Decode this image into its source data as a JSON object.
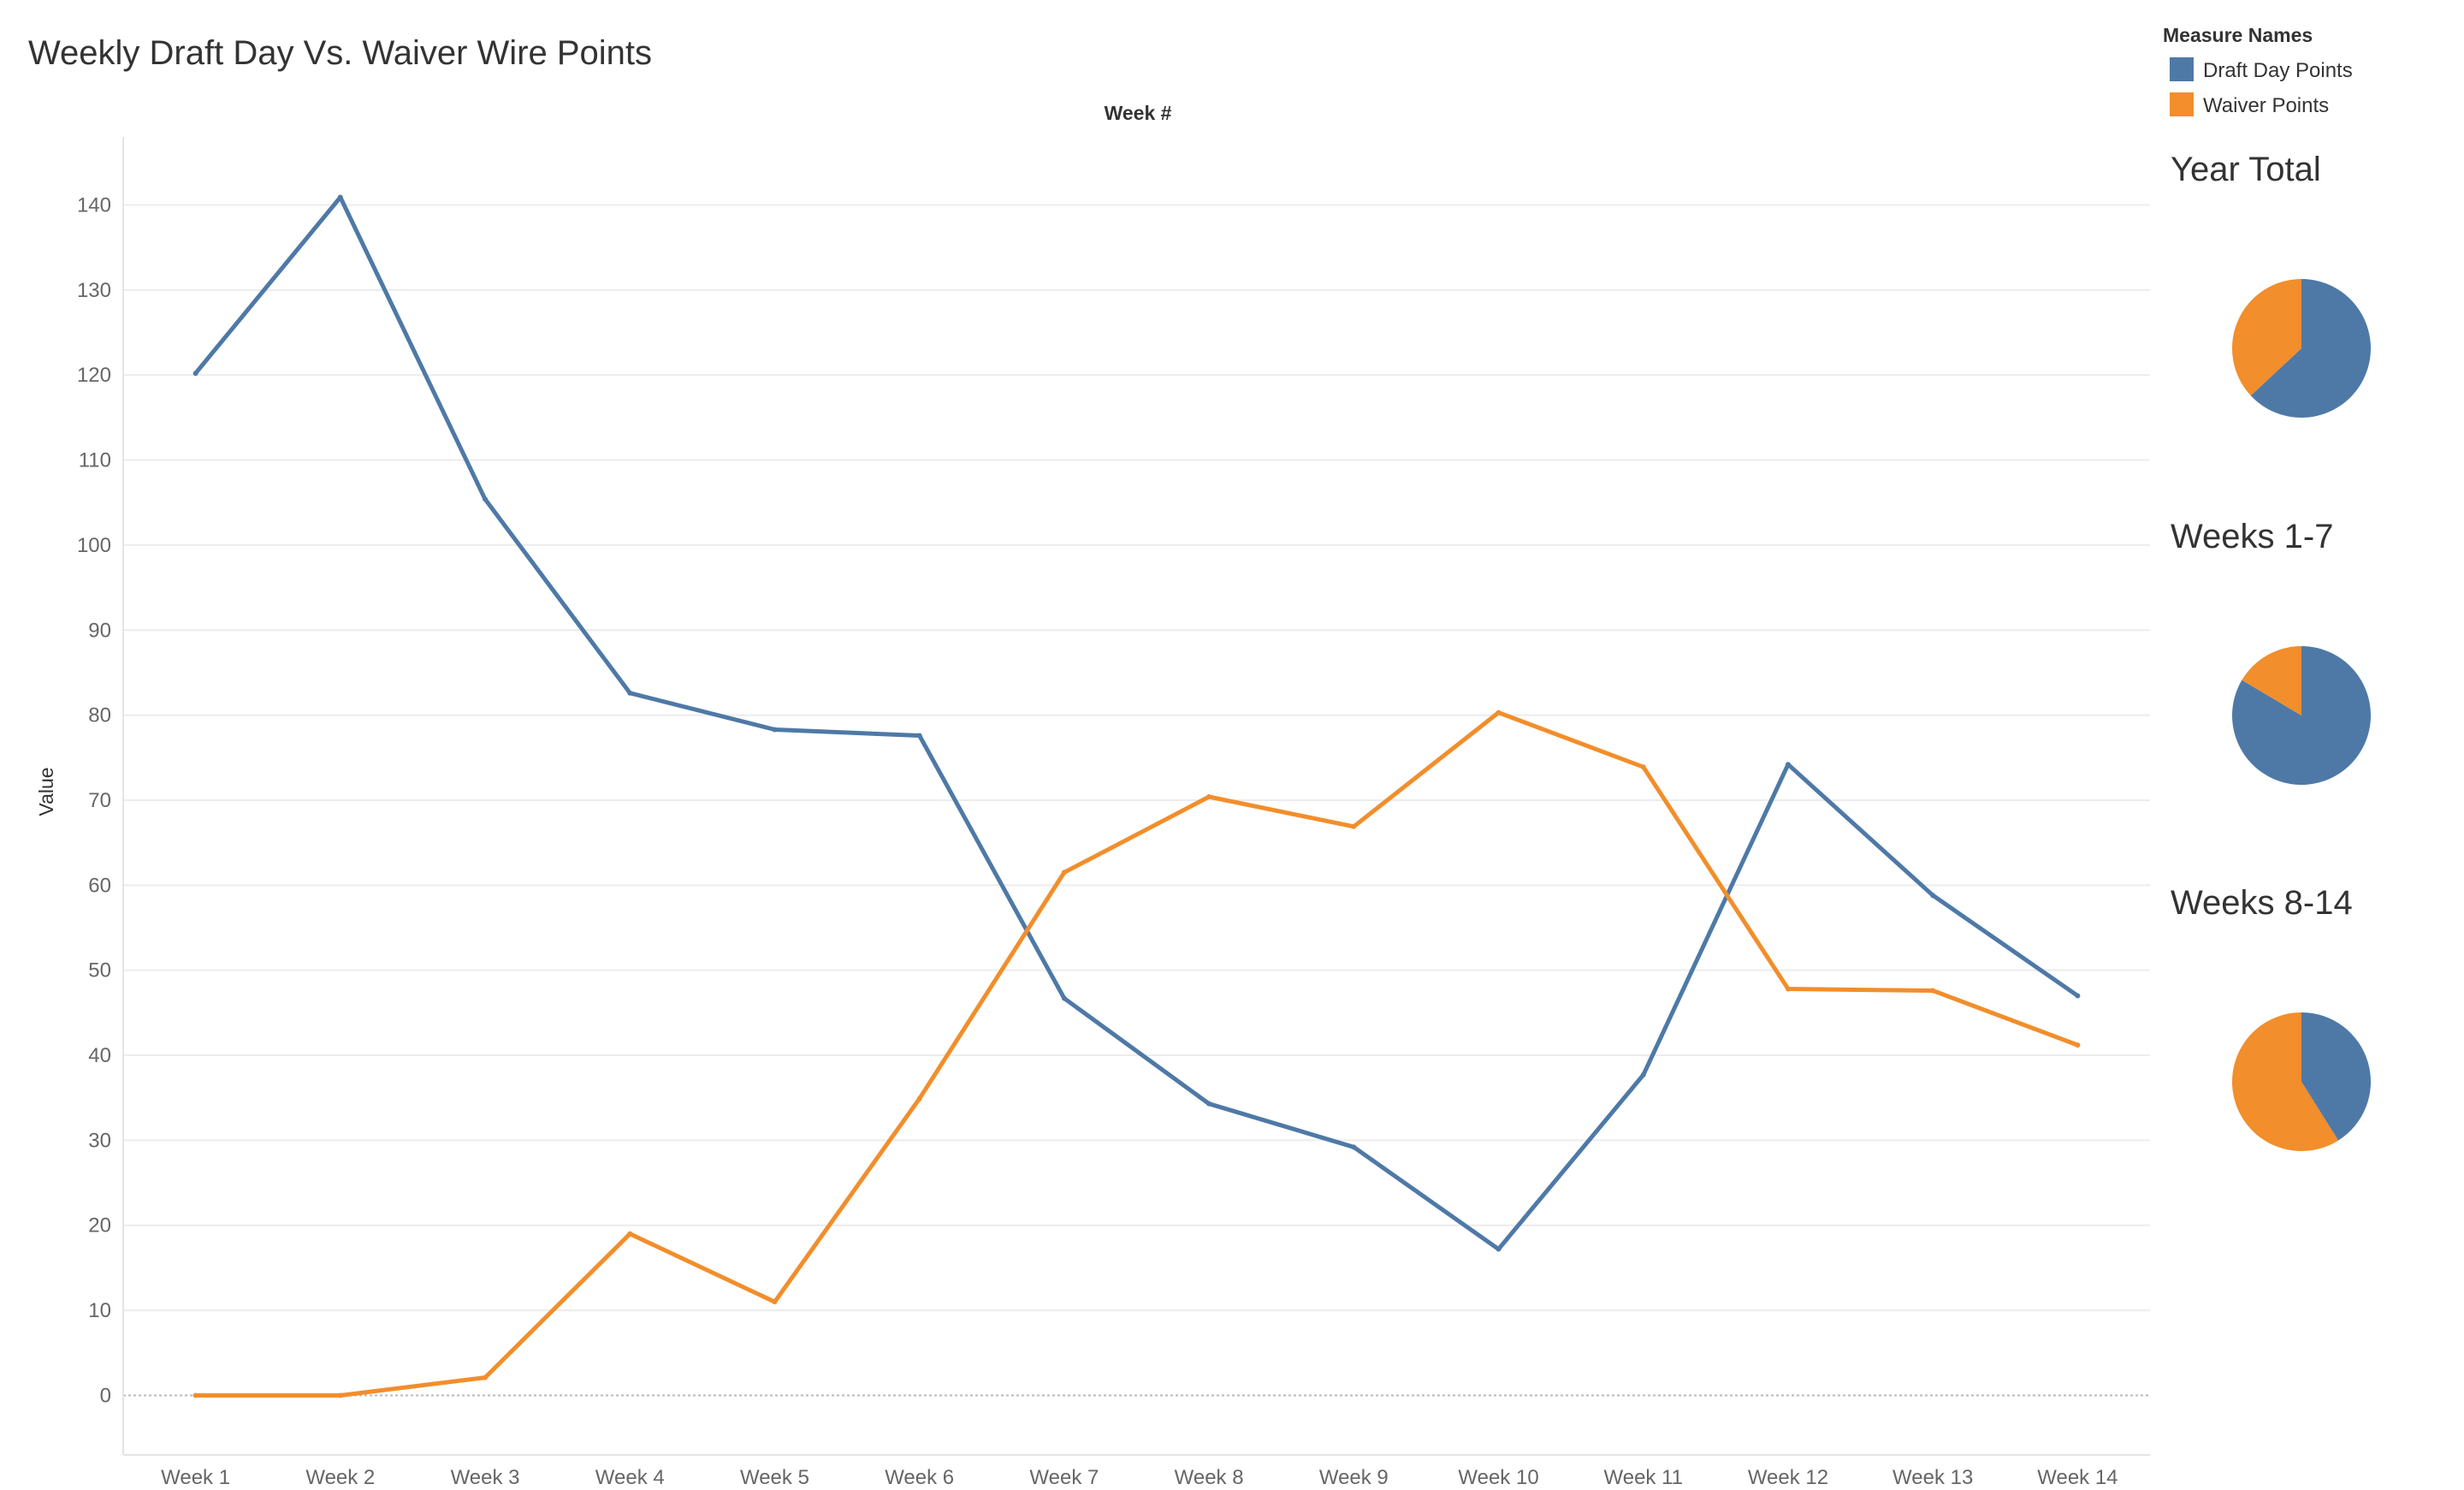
{
  "title": "Weekly Draft Day Vs. Waiver Wire Points",
  "legend": {
    "title": "Measure Names",
    "items": [
      {
        "label": "Draft Day Points",
        "color": "#4e79a7"
      },
      {
        "label": "Waiver Points",
        "color": "#f28e2b"
      }
    ]
  },
  "colors": {
    "draft": "#4e79a7",
    "waiver": "#f28e2b",
    "grid": "#ececec",
    "zero_line": "#b8b8b8",
    "axis_text": "#666666",
    "title_text": "#333333"
  },
  "chart_data": [
    {
      "type": "line",
      "title": "",
      "column_header": "Week #",
      "xlabel": "",
      "ylabel": "Value",
      "ylim": [
        -7,
        148
      ],
      "yticks": [
        0,
        10,
        20,
        30,
        40,
        50,
        60,
        70,
        80,
        90,
        100,
        110,
        120,
        130,
        140
      ],
      "grid": true,
      "legend_position": "top-right",
      "categories": [
        "Week 1",
        "Week 2",
        "Week 3",
        "Week 4",
        "Week 5",
        "Week 6",
        "Week 7",
        "Week 8",
        "Week 9",
        "Week 10",
        "Week 11",
        "Week 12",
        "Week 13",
        "Week 14"
      ],
      "series": [
        {
          "name": "Draft Day Points",
          "values": [
            120.2,
            140.9,
            105.4,
            82.6,
            78.3,
            77.6,
            46.7,
            34.3,
            29.2,
            17.2,
            37.7,
            74.2,
            58.8,
            47.0
          ]
        },
        {
          "name": "Waiver Points",
          "values": [
            0.0,
            0.0,
            2.1,
            19.0,
            11.0,
            34.9,
            61.5,
            70.4,
            66.9,
            80.3,
            73.9,
            47.8,
            47.6,
            41.2
          ]
        }
      ]
    },
    {
      "type": "pie",
      "title": "Year Total",
      "labels": [
        "Draft Day Points",
        "Waiver Points"
      ],
      "values": [
        950.1,
        556.6
      ]
    },
    {
      "type": "pie",
      "title": "Weeks 1-7",
      "labels": [
        "Draft Day Points",
        "Waiver Points"
      ],
      "values": [
        651.7,
        128.5
      ]
    },
    {
      "type": "pie",
      "title": "Weeks 8-14",
      "labels": [
        "Draft Day Points",
        "Waiver Points"
      ],
      "values": [
        298.4,
        428.1
      ]
    }
  ]
}
